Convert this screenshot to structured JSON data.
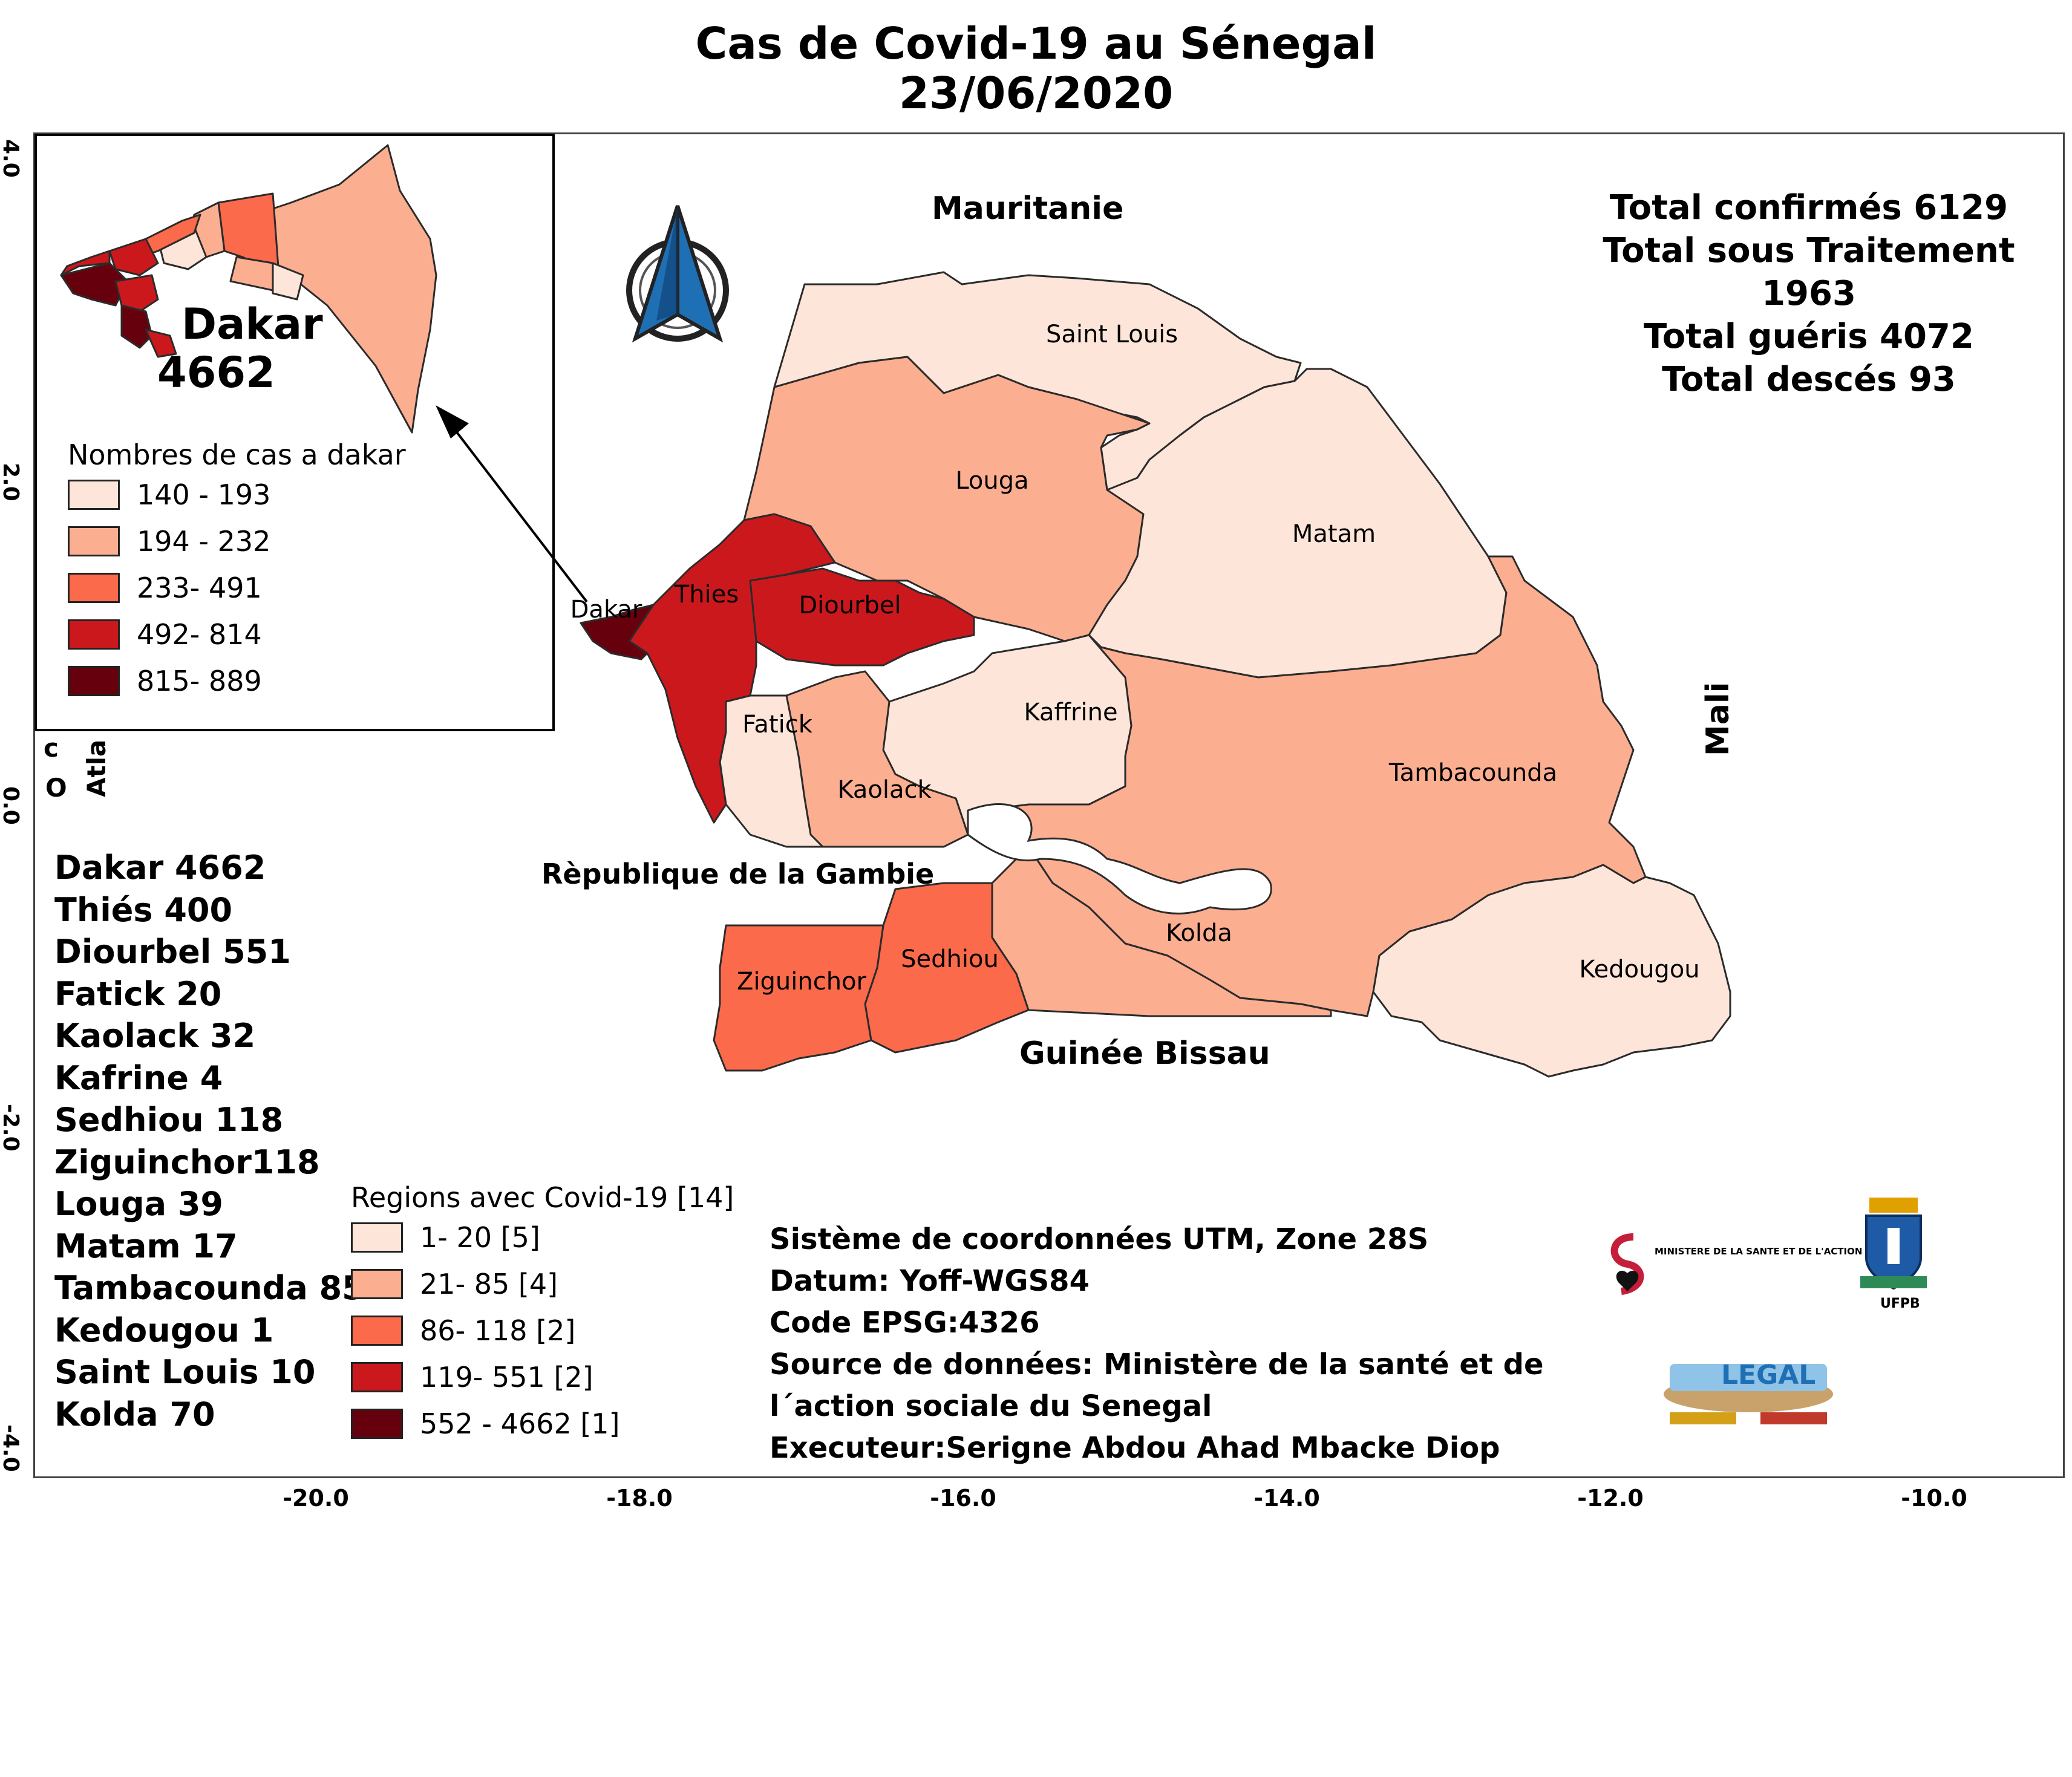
{
  "title": {
    "line1": "Cas de Covid-19 au Sénegal",
    "line2": "23/06/2020"
  },
  "axes": {
    "x_ticks": [
      "-20.0",
      "-18.0",
      "-16.0",
      "-14.0",
      "-12.0",
      "-10.0"
    ],
    "y_ticks": [
      "4.0",
      "2.0",
      "0.0",
      "-2.0",
      "-4.0"
    ]
  },
  "countries": {
    "north": "Mauritanie",
    "east": "Mali",
    "gambia": "Rèpublique de la Gambie",
    "south": "Guinée Bissau"
  },
  "ocean_label": [
    "c",
    "O",
    "Atla"
  ],
  "totals": [
    "Total confirmés 6129",
    "Total sous Traitement",
    "1963",
    "Total guéris 4072",
    "Total descés 93"
  ],
  "regions": [
    {
      "name": "Dakar",
      "cases": 4662,
      "map_label": "Dakar",
      "legend_class": 4,
      "color": "#67000d"
    },
    {
      "name": "Thiés",
      "cases": 400,
      "map_label": "Thies",
      "legend_class": 3,
      "color": "#cb181d"
    },
    {
      "name": "Diourbel",
      "cases": 551,
      "map_label": "Diourbel",
      "legend_class": 3,
      "color": "#cb181d"
    },
    {
      "name": "Fatick",
      "cases": 20,
      "map_label": "Fatick",
      "legend_class": 0,
      "color": "#fee5d9"
    },
    {
      "name": "Kaolack",
      "cases": 32,
      "map_label": "Kaolack",
      "legend_class": 1,
      "color": "#fcae91"
    },
    {
      "name": "Kafrine",
      "cases": 4,
      "map_label": "Kaffrine",
      "legend_class": 0,
      "color": "#fee5d9"
    },
    {
      "name": "Sedhiou",
      "cases": 118,
      "map_label": "Sedhiou",
      "legend_class": 2,
      "color": "#fb6a4a"
    },
    {
      "name": "Ziguinchor",
      "cases": 118,
      "map_label": "Ziguinchor",
      "legend_class": 2,
      "color": "#fb6a4a"
    },
    {
      "name": "Louga",
      "cases": 39,
      "map_label": "Louga",
      "legend_class": 1,
      "color": "#fcae91"
    },
    {
      "name": "Matam",
      "cases": 17,
      "map_label": "Matam",
      "legend_class": 0,
      "color": "#fee5d9"
    },
    {
      "name": "Tambacounda",
      "cases": 85,
      "map_label": "Tambacounda",
      "legend_class": 1,
      "color": "#fcae91"
    },
    {
      "name": "Kedougou",
      "cases": 1,
      "map_label": "Kedougou",
      "legend_class": 0,
      "color": "#fee5d9"
    },
    {
      "name": "Saint Louis",
      "cases": 10,
      "map_label": "Saint Louis",
      "legend_class": 0,
      "color": "#fee5d9"
    },
    {
      "name": "Kolda",
      "cases": 70,
      "map_label": "Kolda",
      "legend_class": 1,
      "color": "#fcae91"
    }
  ],
  "region_list_lines": [
    "Dakar 4662",
    "Thiés  400",
    "Diourbel 551",
    "Fatick 20",
    "Kaolack 32",
    "Kafrine  4",
    "Sedhiou  118",
    "Ziguinchor118",
    "Louga 39",
    "Matam 17",
    "Tambacounda 85",
    "Kedougou 1",
    "Saint Louis  10",
    "Kolda  70"
  ],
  "legend_regions": {
    "title": "Regions avec Covid-19 [14]",
    "items": [
      {
        "label": "1- 20 [5]",
        "color": "#fee5d9"
      },
      {
        "label": "21- 85 [4]",
        "color": "#fcae91"
      },
      {
        "label": "86- 118 [2]",
        "color": "#fb6a4a"
      },
      {
        "label": "119- 551 [2]",
        "color": "#cb181d"
      },
      {
        "label": "552 - 4662 [1]",
        "color": "#67000d"
      }
    ]
  },
  "inset": {
    "title": "Dakar",
    "cases": "4662",
    "legend_title": "Nombres de cas a dakar",
    "legend_items": [
      {
        "label": "140 - 193",
        "color": "#fee5d9"
      },
      {
        "label": "194 - 232",
        "color": "#fcae91"
      },
      {
        "label": "233- 491",
        "color": "#fb6a4a"
      },
      {
        "label": "492- 814",
        "color": "#cb181d"
      },
      {
        "label": "815- 889",
        "color": "#67000d"
      }
    ]
  },
  "metadata_lines": [
    "Sistème de coordonnées UTM, Zone 28S",
    "Datum: Yoff-WGS84",
    "Code EPSG:4326",
    "Source de données: Ministère de la santé et de",
    " l´action sociale du Senegal",
    "Executeur:Serigne Abdou Ahad Mbacke Diop"
  ],
  "logos": {
    "ministry": "MINISTERE DE LA SANTE ET DE L'ACTION SOCIALE",
    "ufpb": "UFPB",
    "legal": "LEGAL"
  },
  "colors": {
    "class0": "#fee5d9",
    "class1": "#fcae91",
    "class2": "#fb6a4a",
    "class3": "#cb181d",
    "class4": "#67000d",
    "north_arrow": "#1f6fb5"
  }
}
